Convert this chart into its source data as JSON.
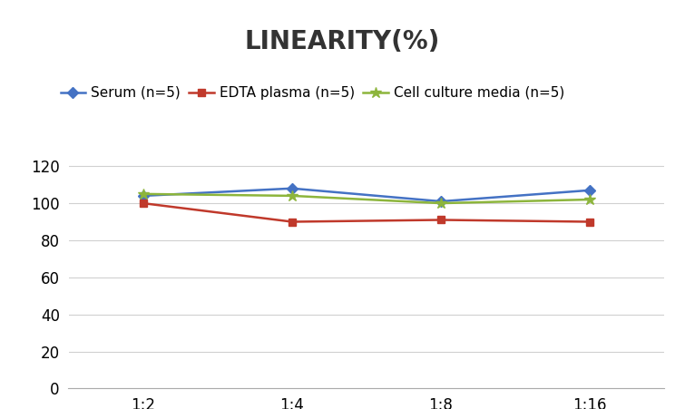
{
  "title": "LINEARITY(%)",
  "x_labels": [
    "1:2",
    "1:4",
    "1:8",
    "1:16"
  ],
  "series": [
    {
      "label": "Serum (n=5)",
      "values": [
        104,
        108,
        101,
        107
      ],
      "color": "#4472C4",
      "marker": "D",
      "markersize": 6
    },
    {
      "label": "EDTA plasma (n=5)",
      "values": [
        100,
        90,
        91,
        90
      ],
      "color": "#C0392B",
      "marker": "s",
      "markersize": 6
    },
    {
      "label": "Cell culture media (n=5)",
      "values": [
        105,
        104,
        100,
        102
      ],
      "color": "#8DB53C",
      "marker": "*",
      "markersize": 9
    }
  ],
  "ylim": [
    0,
    128
  ],
  "yticks": [
    0,
    20,
    40,
    60,
    80,
    100,
    120
  ],
  "title_fontsize": 20,
  "legend_fontsize": 11,
  "tick_fontsize": 12,
  "background_color": "#ffffff",
  "grid_color": "#d0d0d0"
}
